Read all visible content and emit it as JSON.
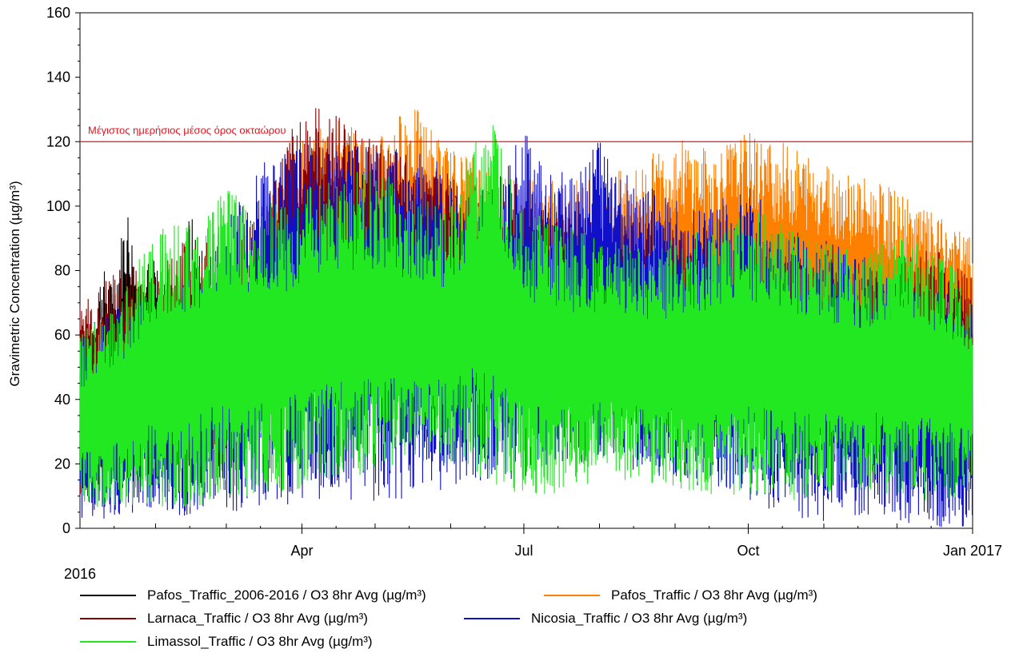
{
  "chart_data": {
    "type": "line",
    "ylabel": "Gravimetric Concentration (µg/m³)",
    "xlabel": "",
    "ylim": [
      0,
      160
    ],
    "yticks": [
      0,
      20,
      40,
      60,
      80,
      100,
      120,
      140,
      160
    ],
    "x_start": "2016-01-01",
    "x_end": "2017-01-01",
    "xticks": [
      {
        "date": "2016-04-01",
        "label": "Apr"
      },
      {
        "date": "2016-07-01",
        "label": "Jul"
      },
      {
        "date": "2016-10-01",
        "label": "Oct"
      },
      {
        "date": "2017-01-01",
        "label": "Jan 2017"
      }
    ],
    "year_label": "2016",
    "threshold": {
      "value": 120,
      "label": "Μέγιστος ημερήσιος μέσος όρος οκταώρου",
      "color": "#e0141e"
    },
    "series": [
      {
        "name": "Pafos_Traffic_2006-2016 / O3 8hr Avg (µg/m³)",
        "color": "#000000",
        "x": [
          "2016-01-01",
          "2016-01-05",
          "2016-01-10",
          "2016-01-15",
          "2016-01-20",
          "2016-01-25",
          "2016-02-01",
          "2016-02-08",
          "2016-02-15",
          "2016-02-22",
          "2016-03-01"
        ],
        "low": [
          40,
          30,
          20,
          35,
          15,
          25,
          10,
          20,
          8,
          12,
          15
        ],
        "high": [
          65,
          60,
          82,
          75,
          104,
          80,
          84,
          70,
          99,
          85,
          80
        ]
      },
      {
        "name": "Pafos_Traffic / O3 8hr Avg (µg/m³)",
        "color": "#ff8000",
        "x": [
          "2016-03-15",
          "2016-04-01",
          "2016-04-15",
          "2016-05-01",
          "2016-05-15",
          "2016-06-01",
          "2016-06-15",
          "2016-07-01",
          "2016-07-15",
          "2016-08-01",
          "2016-08-15",
          "2016-09-01",
          "2016-09-15",
          "2016-10-01",
          "2016-10-15",
          "2016-11-01",
          "2016-11-15",
          "2016-12-01",
          "2016-12-15",
          "2017-01-01"
        ],
        "low": [
          50,
          55,
          60,
          55,
          50,
          55,
          45,
          40,
          45,
          45,
          40,
          45,
          40,
          45,
          40,
          40,
          40,
          35,
          35,
          40
        ],
        "high": [
          100,
          120,
          128,
          120,
          133,
          118,
          115,
          110,
          108,
          110,
          112,
          122,
          118,
          123,
          120,
          115,
          110,
          105,
          98,
          90
        ]
      },
      {
        "name": "Larnaca_Traffic / O3 8hr Avg (µg/m³)",
        "color": "#8b0000",
        "x": [
          "2016-01-01",
          "2016-01-15",
          "2016-02-01",
          "2016-02-15",
          "2016-03-01",
          "2016-03-15",
          "2016-04-01",
          "2016-04-15",
          "2016-05-01",
          "2016-05-15",
          "2016-06-01",
          "2016-06-15",
          "2016-07-01",
          "2016-07-15",
          "2016-08-01",
          "2016-08-15",
          "2016-09-01",
          "2016-09-15",
          "2016-10-01",
          "2016-10-15",
          "2016-11-01",
          "2016-11-15",
          "2016-12-01",
          "2016-12-15",
          "2017-01-01"
        ],
        "low": [
          10,
          15,
          20,
          15,
          25,
          30,
          35,
          40,
          45,
          50,
          55,
          50,
          45,
          50,
          50,
          45,
          40,
          35,
          35,
          30,
          25,
          25,
          20,
          20,
          15
        ],
        "high": [
          70,
          80,
          85,
          90,
          90,
          100,
          132,
          130,
          120,
          115,
          110,
          105,
          100,
          100,
          95,
          95,
          95,
          90,
          90,
          85,
          85,
          80,
          85,
          88,
          80
        ]
      },
      {
        "name": "Nicosia_Traffic / O3 8hr Avg (µg/m³)",
        "color": "#1010c8",
        "x": [
          "2016-01-01",
          "2016-01-15",
          "2016-02-01",
          "2016-02-15",
          "2016-03-01",
          "2016-03-15",
          "2016-04-01",
          "2016-04-15",
          "2016-05-01",
          "2016-05-15",
          "2016-06-01",
          "2016-06-15",
          "2016-07-01",
          "2016-07-15",
          "2016-08-01",
          "2016-08-15",
          "2016-09-01",
          "2016-09-15",
          "2016-10-01",
          "2016-10-15",
          "2016-11-01",
          "2016-11-15",
          "2016-12-01",
          "2016-12-15",
          "2017-01-01"
        ],
        "low": [
          3,
          3,
          5,
          3,
          5,
          6,
          8,
          10,
          6,
          10,
          12,
          15,
          15,
          20,
          20,
          18,
          15,
          12,
          8,
          3,
          2,
          3,
          2,
          0,
          0
        ],
        "high": [
          60,
          70,
          75,
          80,
          95,
          113,
          120,
          120,
          118,
          122,
          110,
          105,
          123,
          110,
          122,
          108,
          103,
          100,
          107,
          95,
          90,
          85,
          80,
          75,
          70
        ]
      },
      {
        "name": "Limassol_Traffic / O3 8hr Avg (µg/m³)",
        "color": "#22e822",
        "x": [
          "2016-01-01",
          "2016-01-15",
          "2016-02-01",
          "2016-02-15",
          "2016-03-01",
          "2016-03-15",
          "2016-04-01",
          "2016-04-15",
          "2016-05-01",
          "2016-05-15",
          "2016-06-01",
          "2016-06-15",
          "2016-07-01",
          "2016-07-15",
          "2016-08-01",
          "2016-08-15",
          "2016-09-01",
          "2016-09-15",
          "2016-10-01",
          "2016-10-15",
          "2016-11-01",
          "2016-11-15",
          "2016-12-01",
          "2016-12-15",
          "2017-01-01"
        ],
        "low": [
          8,
          5,
          5,
          5,
          8,
          10,
          12,
          15,
          15,
          20,
          20,
          15,
          10,
          10,
          15,
          15,
          12,
          10,
          10,
          8,
          10,
          12,
          10,
          8,
          10
        ],
        "high": [
          60,
          70,
          93,
          95,
          106,
          100,
          105,
          110,
          112,
          105,
          100,
          132,
          100,
          95,
          90,
          88,
          90,
          95,
          100,
          95,
          90,
          85,
          92,
          88,
          75
        ]
      }
    ]
  }
}
